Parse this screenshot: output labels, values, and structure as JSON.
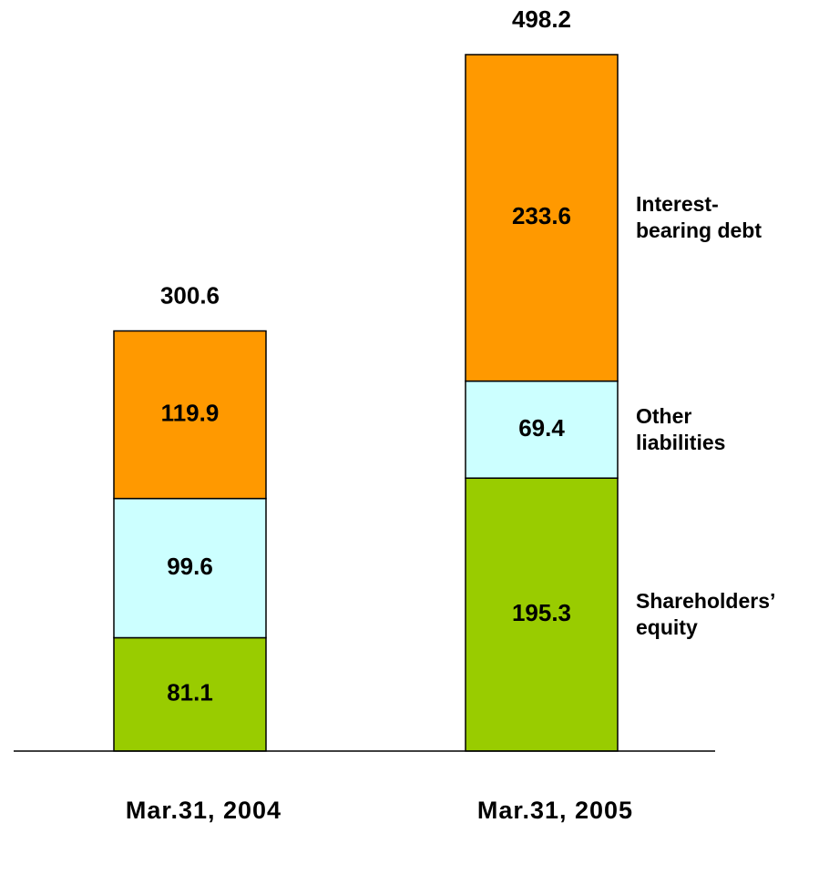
{
  "chart_data": {
    "type": "stacked_bar",
    "categories": [
      "Mar.31, 2004",
      "Mar.31, 2005"
    ],
    "series": [
      {
        "name": "Shareholders’ equity",
        "color": "#99cc00",
        "values": [
          81.1,
          195.3
        ]
      },
      {
        "name": "Other liabilities",
        "color": "#ccffff",
        "values": [
          99.6,
          69.4
        ]
      },
      {
        "name": "Interest-bearing debt",
        "color": "#ff9900",
        "values": [
          119.9,
          233.6
        ]
      }
    ],
    "totals": [
      300.6,
      498.2
    ]
  }
}
